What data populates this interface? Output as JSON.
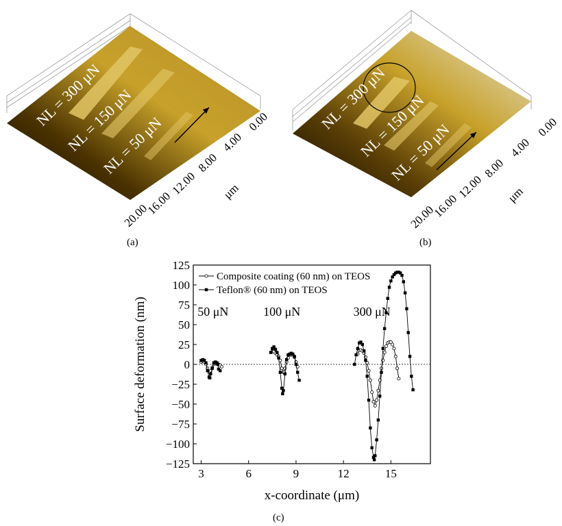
{
  "panels": {
    "a": {
      "label": "(a)",
      "loads": [
        "NL = 300 μN",
        "NL = 150 μN",
        "NL = 50 μN"
      ],
      "axis_values": [
        "0.00",
        "4.00",
        "8.00",
        "12.00",
        "16.00",
        "20.00"
      ],
      "axis_unit": "μm"
    },
    "b": {
      "label": "(b)",
      "loads": [
        "NL = 300 μN",
        "NL = 150 μN",
        "NL = 50 μN"
      ],
      "axis_values": [
        "0.00",
        "4.00",
        "8.00",
        "12.00",
        "16.00",
        "20.00"
      ],
      "axis_unit": "μm"
    },
    "c": {
      "label": "(c)"
    }
  },
  "colors": {
    "afm_light": "#e6e2d2",
    "afm_mid": "#c7a12a",
    "afm_dark": "#4a3200",
    "afm_black": "#0d0a04",
    "series_line": "#000000"
  },
  "chart_data": {
    "type": "line",
    "xlabel": "x-coordinate (μm)",
    "ylabel": "Surface deformation (nm)",
    "xlim": [
      2.5,
      17.5
    ],
    "ylim": [
      -125,
      125
    ],
    "xticks": [
      3,
      6,
      9,
      12,
      15
    ],
    "xtick_labels": [
      "3",
      "6",
      "9",
      "12",
      "15"
    ],
    "yticks": [
      125,
      100,
      75,
      50,
      25,
      0,
      -25,
      -50,
      -75,
      -100,
      -125
    ],
    "ytick_labels": [
      "125",
      "100",
      "75",
      "50",
      "25",
      "0",
      "−25",
      "−50",
      "−75",
      "−100",
      "−125"
    ],
    "annotations": [
      {
        "text": "50 μN",
        "x": 3.75,
        "y": 61
      },
      {
        "text": "100 μN",
        "x": 8.1,
        "y": 61
      },
      {
        "text": "300 μN",
        "x": 13.8,
        "y": 61
      }
    ],
    "legend_position": "top-center",
    "series": [
      {
        "name": "Composite coating (60 nm) on TEOS",
        "marker": "open-circle",
        "segments": [
          [
            [
              3.0,
              3
            ],
            [
              3.1,
              4
            ],
            [
              3.2,
              3
            ],
            [
              3.3,
              0
            ],
            [
              3.4,
              -5
            ],
            [
              3.5,
              -9
            ],
            [
              3.55,
              -10
            ],
            [
              3.6,
              -8
            ],
            [
              3.7,
              -4
            ],
            [
              3.8,
              0
            ],
            [
              3.9,
              1
            ],
            [
              4.0,
              1
            ],
            [
              4.1,
              0
            ],
            [
              4.2,
              -1
            ],
            [
              4.3,
              -3
            ]
          ],
          [
            [
              7.5,
              16
            ],
            [
              7.6,
              16
            ],
            [
              7.7,
              14
            ],
            [
              7.8,
              12
            ],
            [
              7.9,
              10
            ],
            [
              8.0,
              5
            ],
            [
              8.1,
              -5
            ],
            [
              8.2,
              -10
            ],
            [
              8.25,
              -10
            ],
            [
              8.3,
              -5
            ],
            [
              8.4,
              3
            ],
            [
              8.5,
              8
            ],
            [
              8.6,
              12
            ],
            [
              8.7,
              12
            ],
            [
              8.8,
              12
            ],
            [
              8.9,
              9
            ],
            [
              9.0,
              3
            ],
            [
              9.1,
              -3
            ]
          ],
          [
            [
              12.9,
              13
            ],
            [
              13.0,
              18
            ],
            [
              13.1,
              18
            ],
            [
              13.2,
              17
            ],
            [
              13.3,
              14
            ],
            [
              13.4,
              9
            ],
            [
              13.5,
              2
            ],
            [
              13.6,
              -8
            ],
            [
              13.7,
              -20
            ],
            [
              13.8,
              -35
            ],
            [
              13.9,
              -47
            ],
            [
              14.0,
              -52
            ],
            [
              14.1,
              -45
            ],
            [
              14.2,
              -33
            ],
            [
              14.3,
              -20
            ],
            [
              14.4,
              -5
            ],
            [
              14.5,
              5
            ],
            [
              14.6,
              15
            ],
            [
              14.7,
              23
            ],
            [
              14.8,
              27
            ],
            [
              14.9,
              28
            ],
            [
              15.0,
              28
            ],
            [
              15.1,
              25
            ],
            [
              15.2,
              20
            ],
            [
              15.3,
              10
            ],
            [
              15.4,
              -5
            ],
            [
              15.5,
              -18
            ]
          ]
        ]
      },
      {
        "name": "Teflon® (60 nm) on TEOS",
        "marker": "filled-square",
        "segments": [
          [
            [
              3.0,
              5
            ],
            [
              3.1,
              6
            ],
            [
              3.2,
              5
            ],
            [
              3.3,
              2
            ],
            [
              3.4,
              -8
            ],
            [
              3.5,
              -16
            ],
            [
              3.55,
              -17
            ],
            [
              3.6,
              -12
            ],
            [
              3.7,
              -5
            ],
            [
              3.8,
              2
            ],
            [
              3.9,
              3
            ],
            [
              4.0,
              2
            ],
            [
              4.05,
              0
            ],
            [
              4.1,
              -6
            ],
            [
              4.2,
              -8
            ]
          ],
          [
            [
              7.4,
              15
            ],
            [
              7.5,
              20
            ],
            [
              7.6,
              22
            ],
            [
              7.7,
              19
            ],
            [
              7.8,
              15
            ],
            [
              7.9,
              8
            ],
            [
              8.0,
              -10
            ],
            [
              8.1,
              -30
            ],
            [
              8.15,
              -37
            ],
            [
              8.2,
              -33
            ],
            [
              8.3,
              -12
            ],
            [
              8.4,
              6
            ],
            [
              8.5,
              12
            ],
            [
              8.6,
              13
            ],
            [
              8.7,
              14
            ],
            [
              8.8,
              13
            ],
            [
              8.9,
              10
            ],
            [
              9.0,
              0
            ],
            [
              9.1,
              -10
            ],
            [
              9.2,
              -20
            ]
          ],
          [
            [
              12.7,
              0
            ],
            [
              12.8,
              12
            ],
            [
              12.9,
              20
            ],
            [
              13.0,
              27
            ],
            [
              13.1,
              28
            ],
            [
              13.2,
              25
            ],
            [
              13.3,
              17
            ],
            [
              13.4,
              5
            ],
            [
              13.5,
              -15
            ],
            [
              13.6,
              -45
            ],
            [
              13.7,
              -80
            ],
            [
              13.8,
              -105
            ],
            [
              13.9,
              -117
            ],
            [
              13.95,
              -120
            ],
            [
              14.0,
              -115
            ],
            [
              14.1,
              -95
            ],
            [
              14.2,
              -70
            ],
            [
              14.3,
              -40
            ],
            [
              14.4,
              -10
            ],
            [
              14.5,
              20
            ],
            [
              14.6,
              45
            ],
            [
              14.7,
              65
            ],
            [
              14.8,
              83
            ],
            [
              14.9,
              97
            ],
            [
              15.0,
              105
            ],
            [
              15.1,
              110
            ],
            [
              15.2,
              113
            ],
            [
              15.3,
              115
            ],
            [
              15.4,
              116
            ],
            [
              15.5,
              116
            ],
            [
              15.6,
              115
            ],
            [
              15.7,
              112
            ],
            [
              15.8,
              104
            ],
            [
              15.9,
              90
            ],
            [
              16.0,
              70
            ],
            [
              16.1,
              40
            ],
            [
              16.2,
              10
            ],
            [
              16.3,
              -15
            ],
            [
              16.4,
              -32
            ]
          ]
        ]
      }
    ]
  }
}
